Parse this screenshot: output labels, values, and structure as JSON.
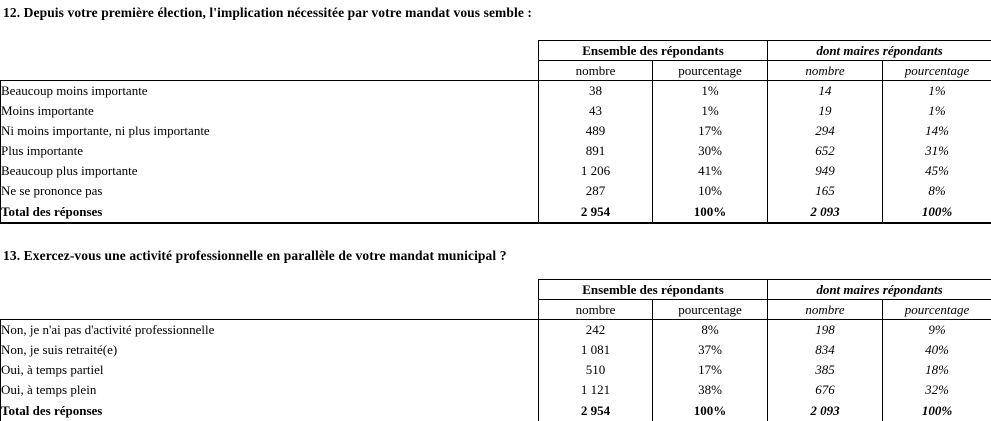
{
  "palette": {
    "text_color": "#000000",
    "background": "#ffffff",
    "border_color": "#000000"
  },
  "questions": [
    {
      "title": "12. Depuis votre première élection, l'implication nécessitée par votre mandat vous semble :",
      "table": {
        "group_headers": [
          "Ensemble des répondants",
          "dont maires répondants"
        ],
        "col_headers": [
          "nombre",
          "pourcentage",
          "nombre",
          "pourcentage"
        ],
        "rows": [
          {
            "label": "Beaucoup moins importante",
            "values": [
              "38",
              "1%",
              "14",
              "1%"
            ]
          },
          {
            "label": "Moins importante",
            "values": [
              "43",
              "1%",
              "19",
              "1%"
            ]
          },
          {
            "label": "Ni moins importante, ni plus importante",
            "values": [
              "489",
              "17%",
              "294",
              "14%"
            ]
          },
          {
            "label": "Plus importante",
            "values": [
              "891",
              "30%",
              "652",
              "31%"
            ]
          },
          {
            "label": "Beaucoup plus importante",
            "values": [
              "1 206",
              "41%",
              "949",
              "45%"
            ]
          },
          {
            "label": "Ne se prononce pas",
            "values": [
              "287",
              "10%",
              "165",
              "8%"
            ]
          }
        ],
        "total": {
          "label": "Total des réponses",
          "values": [
            "2 954",
            "100%",
            "2 093",
            "100%"
          ]
        }
      }
    },
    {
      "title": "13. Exercez-vous une activité professionnelle en parallèle de votre mandat municipal ?",
      "table": {
        "group_headers": [
          "Ensemble des répondants",
          "dont maires répondants"
        ],
        "col_headers": [
          "nombre",
          "pourcentage",
          "nombre",
          "pourcentage"
        ],
        "rows": [
          {
            "label": "Non, je n'ai pas d'activité professionnelle",
            "values": [
              "242",
              "8%",
              "198",
              "9%"
            ]
          },
          {
            "label": "Non, je suis retraité(e)",
            "values": [
              "1 081",
              "37%",
              "834",
              "40%"
            ]
          },
          {
            "label": "Oui, à temps partiel",
            "values": [
              "510",
              "17%",
              "385",
              "18%"
            ]
          },
          {
            "label": "Oui, à temps plein",
            "values": [
              "1 121",
              "38%",
              "676",
              "32%"
            ]
          }
        ],
        "total": {
          "label": "Total des réponses",
          "values": [
            "2 954",
            "100%",
            "2 093",
            "100%"
          ]
        }
      }
    }
  ]
}
